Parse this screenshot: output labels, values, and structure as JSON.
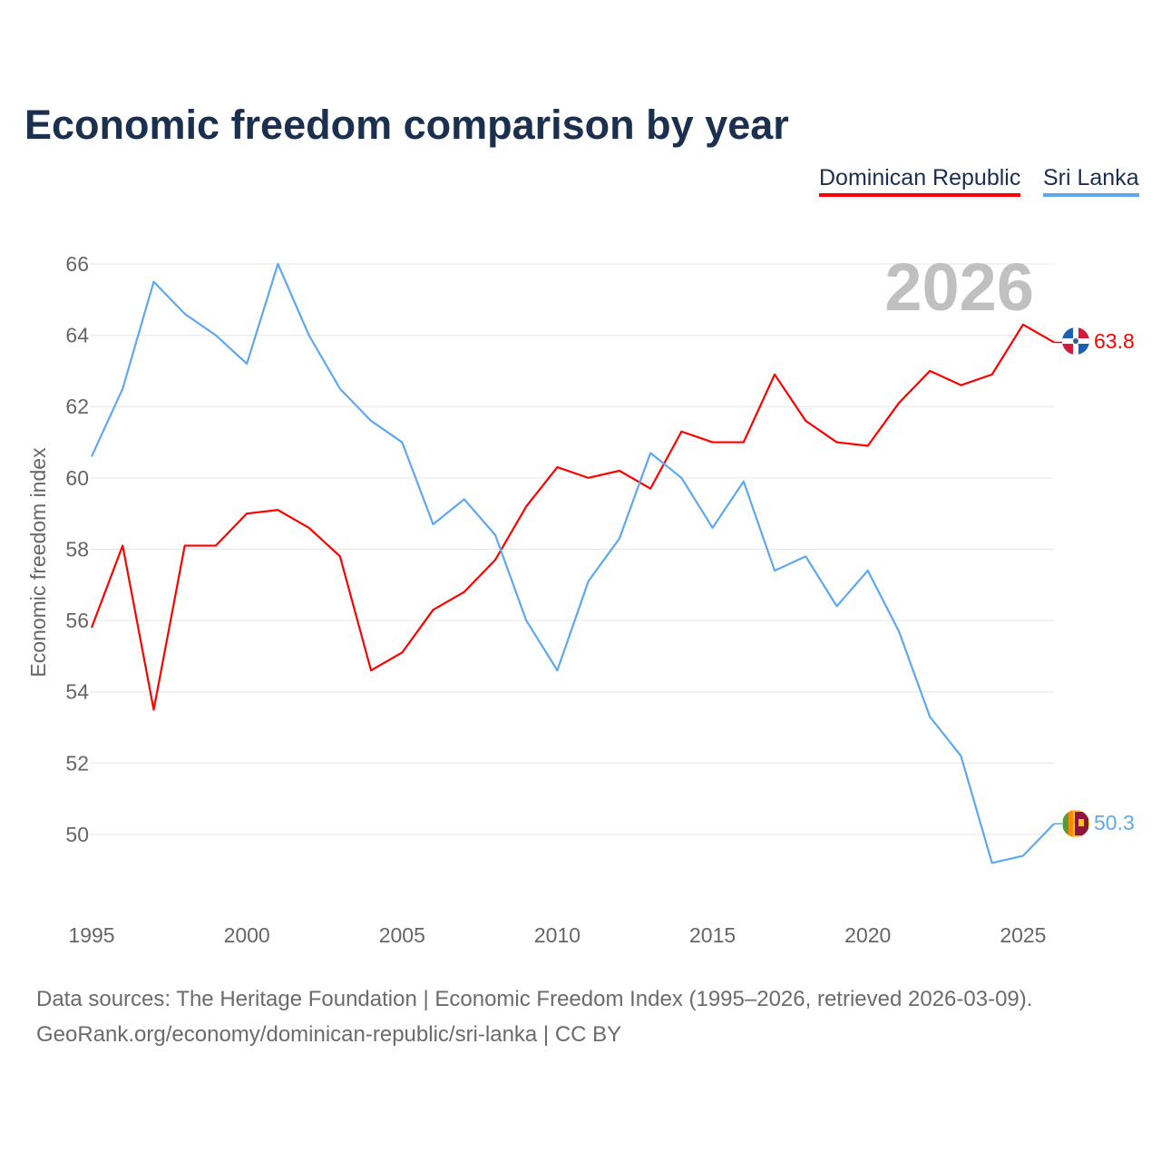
{
  "title": "Economic freedom comparison by year",
  "footer": {
    "line1": "Data sources: The Heritage Foundation | Economic Freedom Index (1995–2026, retrieved 2026-03-09).",
    "line2": "GeoRank.org/economy/dominican-republic/sri-lanka | CC BY"
  },
  "chart_data": {
    "type": "line",
    "title": "Economic freedom comparison by year",
    "xlabel": "",
    "ylabel": "Economic freedom index",
    "year_label": "2026",
    "xlim": [
      1995,
      2026
    ],
    "ylim": [
      48,
      67
    ],
    "x_ticks": [
      "1995",
      "2000",
      "2005",
      "2010",
      "2015",
      "2020",
      "2025"
    ],
    "y_ticks": [
      "50",
      "52",
      "54",
      "56",
      "58",
      "60",
      "62",
      "64",
      "66"
    ],
    "grid": true,
    "legend": "top-right",
    "x": [
      1995,
      1996,
      1997,
      1998,
      1999,
      2000,
      2001,
      2002,
      2003,
      2004,
      2005,
      2006,
      2007,
      2008,
      2009,
      2010,
      2011,
      2012,
      2013,
      2014,
      2015,
      2016,
      2017,
      2018,
      2019,
      2020,
      2021,
      2022,
      2023,
      2024,
      2025,
      2026
    ],
    "series": [
      {
        "name": "Dominican Republic",
        "color": "#ff0000",
        "end_label": "63.8",
        "values": [
          55.8,
          58.1,
          53.5,
          58.1,
          58.1,
          59.0,
          59.1,
          58.6,
          57.8,
          54.6,
          55.1,
          56.3,
          56.8,
          57.7,
          59.2,
          60.3,
          60.0,
          60.2,
          59.7,
          61.3,
          61.0,
          61.0,
          62.9,
          61.6,
          61.0,
          60.9,
          62.1,
          63.0,
          62.6,
          62.9,
          64.3,
          63.8
        ]
      },
      {
        "name": "Sri Lanka",
        "color": "#5ea8ee",
        "end_label": "50.3",
        "values": [
          60.6,
          62.5,
          65.5,
          64.6,
          64.0,
          63.2,
          66.0,
          64.0,
          62.5,
          61.6,
          61.0,
          58.7,
          59.4,
          58.4,
          56.0,
          54.6,
          57.1,
          58.3,
          60.7,
          60.0,
          58.6,
          59.9,
          57.4,
          57.8,
          56.4,
          57.4,
          55.7,
          53.3,
          52.2,
          49.2,
          49.4,
          50.3
        ]
      }
    ]
  }
}
